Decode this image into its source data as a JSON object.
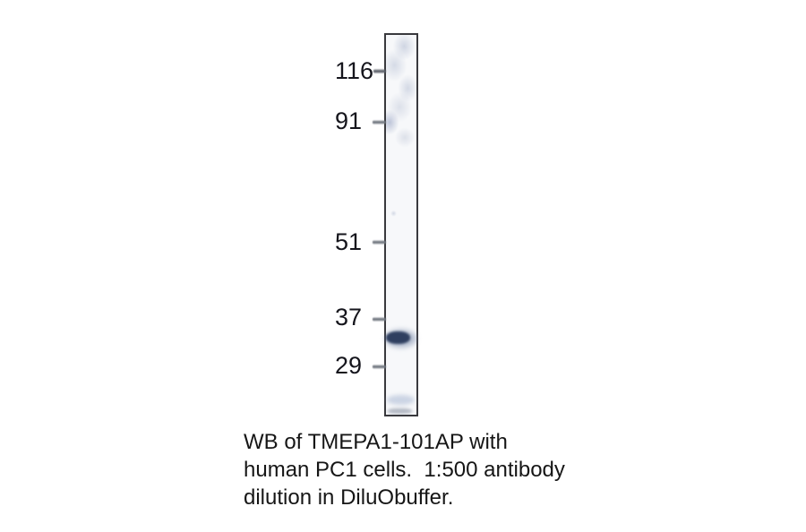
{
  "figure": {
    "type": "western-blot",
    "markers": [
      {
        "label": "116"
      },
      {
        "label": "91"
      },
      {
        "label": "51"
      },
      {
        "label": "37"
      },
      {
        "label": "29"
      }
    ],
    "bands": [
      {
        "name": "main-band",
        "location": "between 37 and 29 markers",
        "intensity": "strong"
      },
      {
        "name": "faint-band",
        "location": "near bottom of lane",
        "intensity": "faint"
      }
    ]
  },
  "caption": {
    "lines": [
      "WB of TMEPA1-101AP with",
      "human PC1 cells.  1:500 antibody",
      "dilution in DiluObuffer."
    ]
  },
  "colors": {
    "background": "#ffffff",
    "lane_border": "#39393d",
    "lane_background": "#f7f8fa",
    "lane_mottle": "#c2cadd",
    "band": "#2f3f60",
    "tick": "#70767f",
    "marker_text": "#15151c",
    "caption_text": "#161616"
  }
}
